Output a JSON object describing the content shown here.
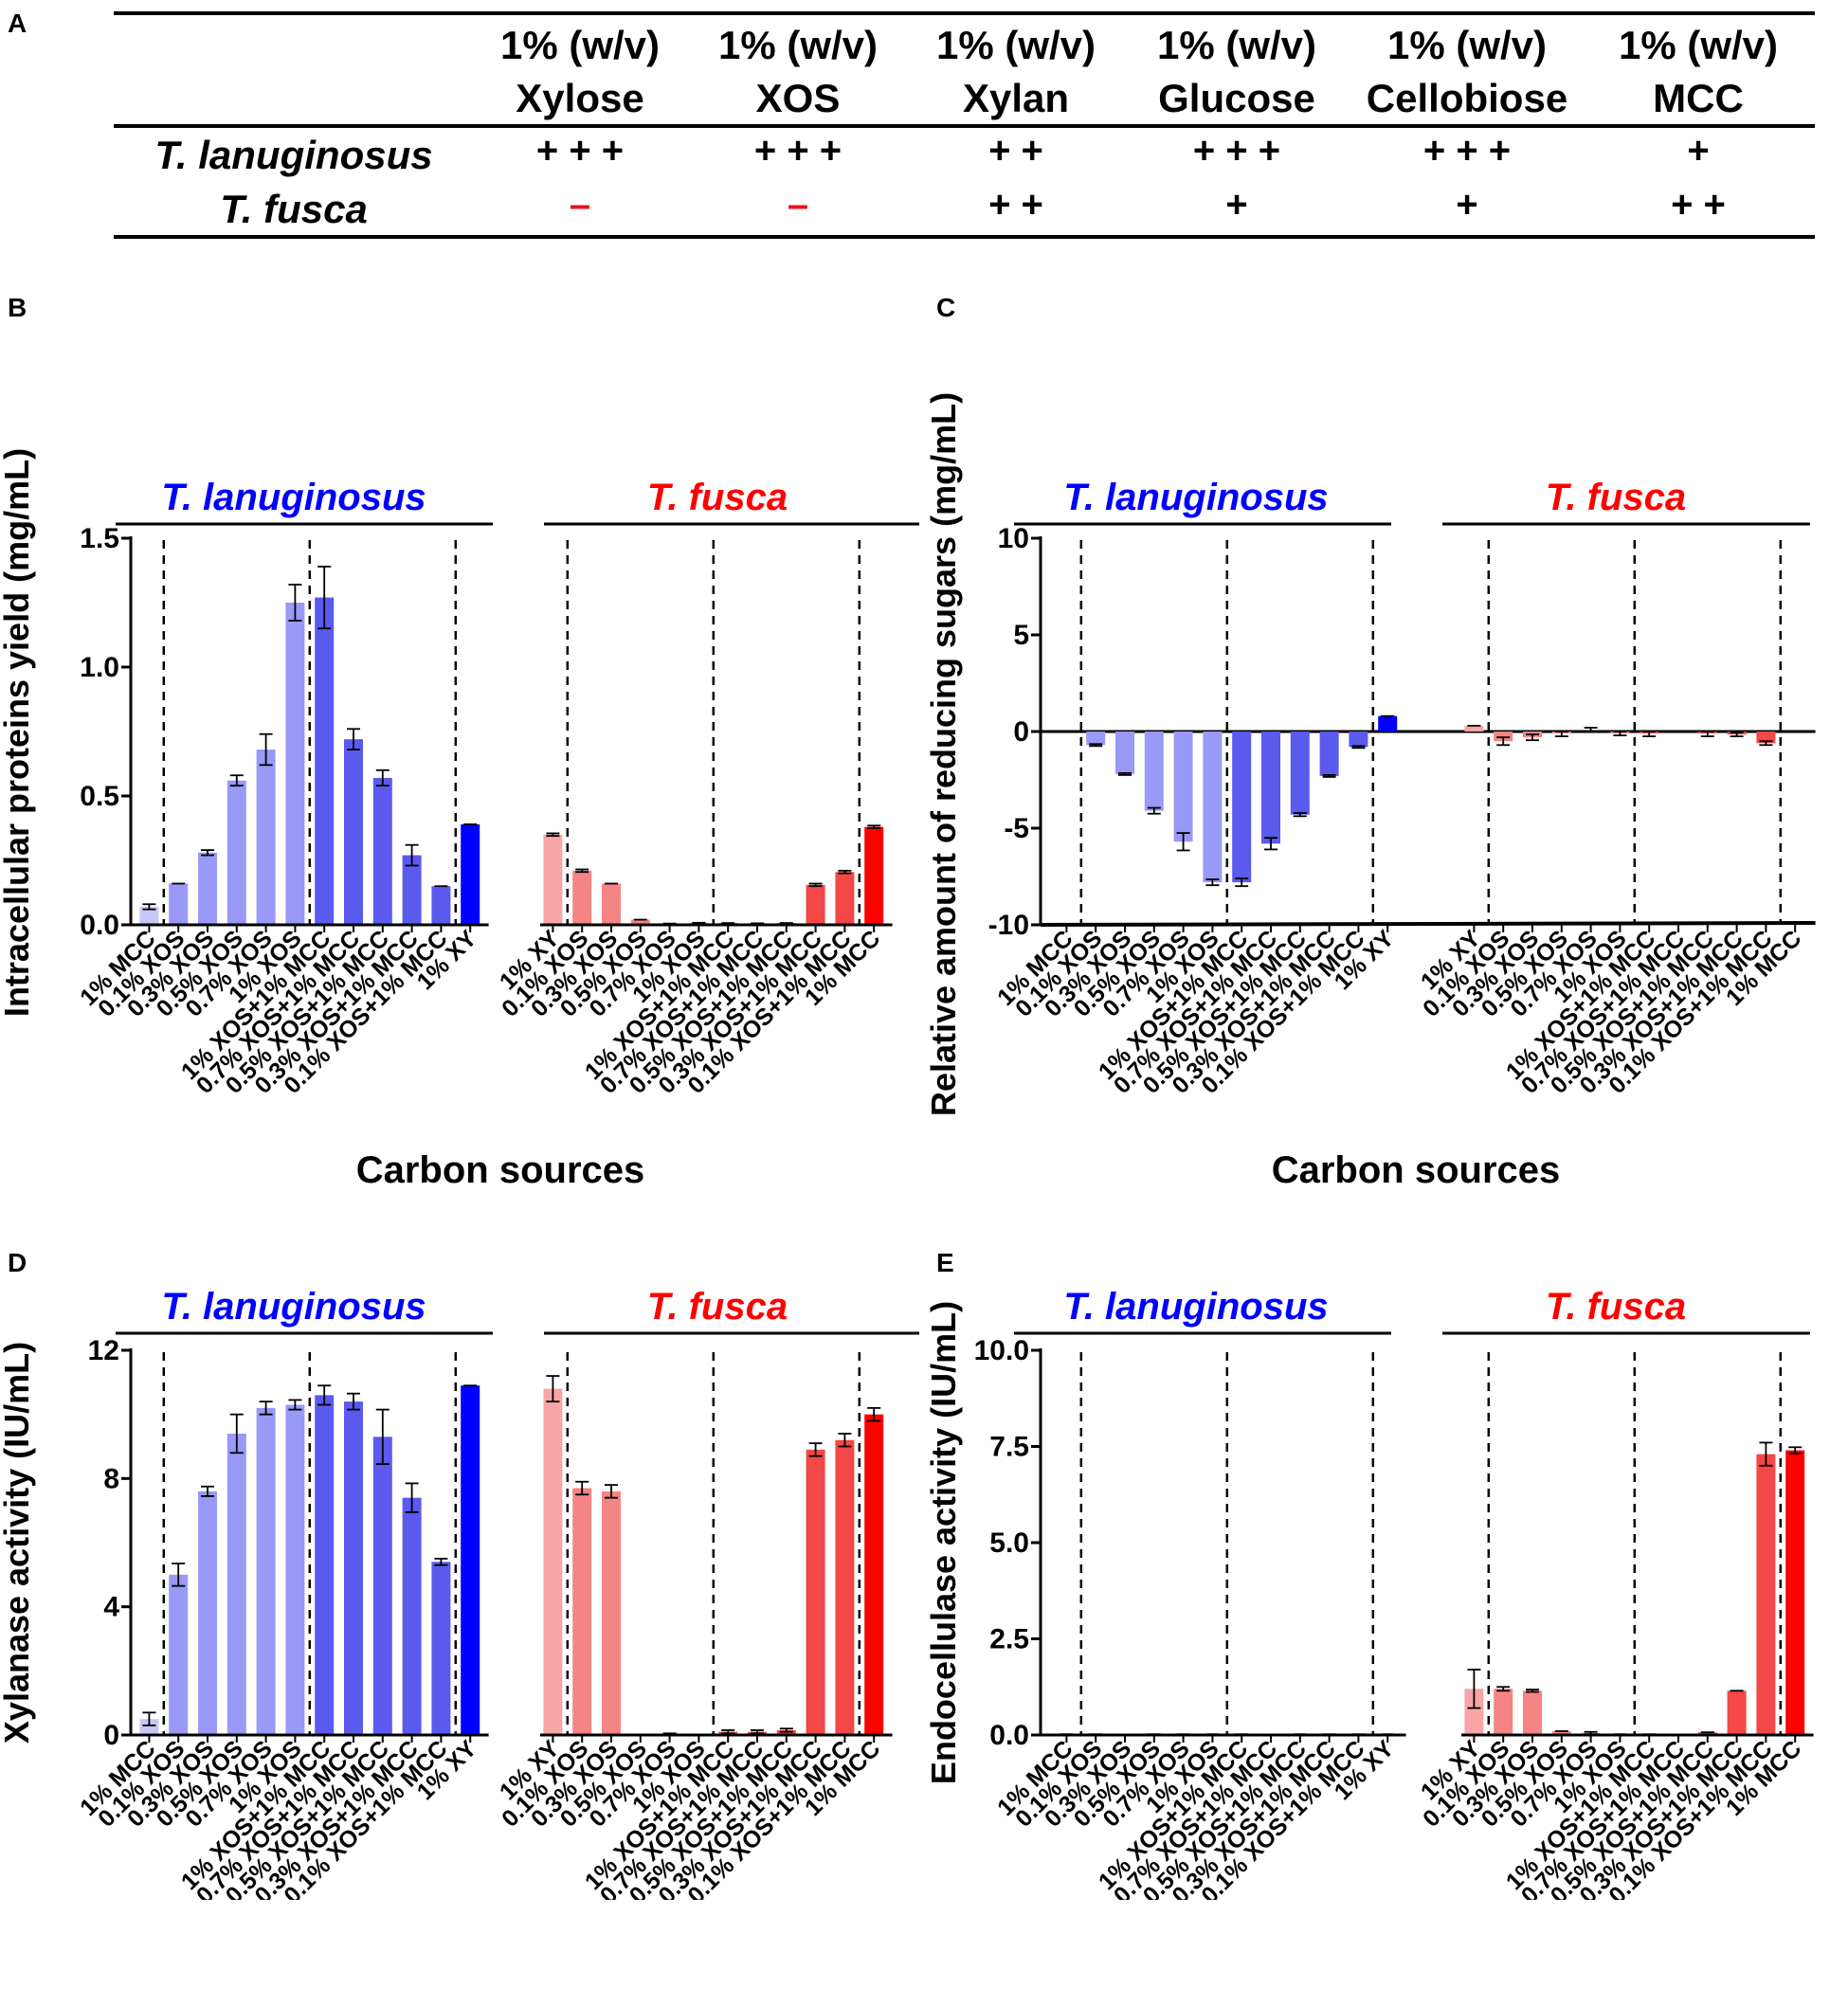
{
  "table": {
    "panel_letter": "A",
    "columns": [
      {
        "line1": "1% (w/v)",
        "line2": "Xylose"
      },
      {
        "line1": "1% (w/v)",
        "line2": "XOS"
      },
      {
        "line1": "1% (w/v)",
        "line2": "Xylan"
      },
      {
        "line1": "1% (w/v)",
        "line2": "Glucose"
      },
      {
        "line1": "1% (w/v)",
        "line2": "Cellobiose"
      },
      {
        "line1": "1% (w/v)",
        "line2": "MCC"
      }
    ],
    "rows": [
      {
        "organism": "T. lanuginosus",
        "cells": [
          "+ + +",
          "+ + +",
          "+ +",
          "+ + +",
          "+ + +",
          "+"
        ]
      },
      {
        "organism": "T. fusca",
        "cells": [
          "–",
          "–",
          "+ +",
          "+",
          "+",
          "+ +"
        ]
      }
    ]
  },
  "colors": {
    "tl": [
      "#c8c8f8",
      "#9999f7",
      "#5a5aef",
      "#0000ff"
    ],
    "tf": [
      "#f8a5a5",
      "#f58484",
      "#f44747",
      "#ff0000"
    ],
    "minus": "#e8141c",
    "tl_title": "#0000ff",
    "tf_title": "#ff0000"
  },
  "chart_data": [
    {
      "panel": "B",
      "type": "bar",
      "ylabel": "Intracellular proteins yield (mg/mL)",
      "xlabel": "Carbon sources",
      "ylim": [
        0,
        1.5
      ],
      "yticks": [
        "0.0",
        "0.5",
        "1.0",
        "1.5"
      ],
      "group_titles": [
        "T. lanuginosus",
        "T. fusca"
      ],
      "groups": [
        {
          "categories": [
            "1% MCC",
            "0.1% XOS",
            "0.3% XOS",
            "0.5% XOS",
            "0.7% XOS",
            "1% XOS",
            "1% XOS+1% MCC",
            "0.7% XOS+1% MCC",
            "0.5% XOS+1% MCC",
            "0.3% XOS+1% MCC",
            "0.1% XOS+1% MCC",
            "1% XY"
          ],
          "values": [
            0.07,
            0.16,
            0.28,
            0.56,
            0.68,
            1.25,
            1.27,
            0.72,
            0.57,
            0.27,
            0.15,
            0.39
          ],
          "errors": [
            0.01,
            0.0,
            0.01,
            0.02,
            0.06,
            0.07,
            0.12,
            0.04,
            0.03,
            0.04,
            0.0,
            0.0
          ]
        },
        {
          "categories": [
            "1% XY",
            "0.1% XOS",
            "0.3% XOS",
            "0.5% XOS",
            "0.7% XOS",
            "1% XOS",
            "1% XOS+1% MCC",
            "0.7% XOS+1% MCC",
            "0.5% XOS+1% MCC",
            "0.3% XOS+1% MCC",
            "0.1% XOS+1% MCC",
            "1% MCC"
          ],
          "values": [
            0.35,
            0.21,
            0.16,
            0.02,
            0.005,
            0.008,
            0.007,
            0.006,
            0.007,
            0.155,
            0.205,
            0.38
          ],
          "errors": [
            0.005,
            0.005,
            0.0,
            0.0,
            0.0,
            0.0,
            0.0,
            0.0,
            0.0,
            0.005,
            0.005,
            0.005
          ]
        }
      ]
    },
    {
      "panel": "C",
      "type": "bar",
      "ylabel": "Relative amount of reducing sugars (mg/mL)",
      "xlabel": "Carbon sources",
      "ylim": [
        -10,
        10
      ],
      "yticks": [
        "-10",
        "-5",
        "0",
        "5",
        "10"
      ],
      "group_titles": [
        "T. lanuginosus",
        "T. fusca"
      ],
      "groups": [
        {
          "categories": [
            "1% MCC",
            "0.1% XOS",
            "0.3% XOS",
            "0.5% XOS",
            "0.7% XOS",
            "1% XOS",
            "1% XOS+1% MCC",
            "0.7% XOS+1% MCC",
            "0.5% XOS+1% MCC",
            "0.3% XOS+1% MCC",
            "0.1% XOS+1% MCC",
            "1% XY"
          ],
          "values": [
            0.0,
            -0.7,
            -2.2,
            -4.1,
            -5.7,
            -7.8,
            -7.8,
            -5.8,
            -4.3,
            -2.3,
            -0.8,
            0.8
          ],
          "errors": [
            0.0,
            0.05,
            0.05,
            0.15,
            0.45,
            0.15,
            0.2,
            0.3,
            0.08,
            0.05,
            0.05,
            0.0
          ]
        },
        {
          "categories": [
            "1% XY",
            "0.1% XOS",
            "0.3% XOS",
            "0.5% XOS",
            "0.7% XOS",
            "1% XOS",
            "1% XOS+1% MCC",
            "0.7% XOS+1% MCC",
            "0.5% XOS+1% MCC",
            "0.3% XOS+1% MCC",
            "0.1% XOS+1% MCC",
            "1% MCC"
          ],
          "values": [
            0.3,
            -0.5,
            -0.3,
            -0.1,
            0.0,
            -0.1,
            -0.1,
            0.0,
            -0.1,
            -0.15,
            -0.6,
            0.0
          ],
          "errors": [
            0.0,
            0.2,
            0.15,
            0.15,
            0.2,
            0.1,
            0.15,
            0.0,
            0.15,
            0.1,
            0.1,
            0.0
          ]
        }
      ]
    },
    {
      "panel": "D",
      "type": "bar",
      "ylabel": "Xylanase activity (IU/mL)",
      "xlabel": "",
      "ylim": [
        0,
        12
      ],
      "yticks": [
        "0",
        "4",
        "8",
        "12"
      ],
      "group_titles": [
        "T. lanuginosus",
        "T. fusca"
      ],
      "groups": [
        {
          "categories": [
            "1% MCC",
            "0.1% XOS",
            "0.3% XOS",
            "0.5% XOS",
            "0.7% XOS",
            "1% XOS",
            "1% XOS+1% MCC",
            "0.7% XOS+1% MCC",
            "0.5% XOS+1% MCC",
            "0.3% XOS+1% MCC",
            "0.1% XOS+1% MCC",
            "1% XY"
          ],
          "values": [
            0.5,
            5.0,
            7.6,
            9.4,
            10.2,
            10.3,
            10.6,
            10.4,
            9.3,
            7.4,
            5.4,
            10.9
          ],
          "errors": [
            0.2,
            0.35,
            0.15,
            0.6,
            0.2,
            0.15,
            0.3,
            0.25,
            0.85,
            0.45,
            0.1,
            0.0
          ]
        },
        {
          "categories": [
            "1% XY",
            "0.1% XOS",
            "0.3% XOS",
            "0.5% XOS",
            "0.7% XOS",
            "1% XOS",
            "1% XOS+1% MCC",
            "0.7% XOS+1% MCC",
            "0.5% XOS+1% MCC",
            "0.3% XOS+1% MCC",
            "0.1% XOS+1% MCC",
            "1% MCC"
          ],
          "values": [
            10.8,
            7.7,
            7.6,
            0.0,
            0.05,
            0.0,
            0.1,
            0.1,
            0.15,
            8.9,
            9.2,
            10.0
          ],
          "errors": [
            0.4,
            0.2,
            0.2,
            0.0,
            0.0,
            0.0,
            0.05,
            0.05,
            0.05,
            0.2,
            0.2,
            0.2
          ]
        }
      ]
    },
    {
      "panel": "E",
      "type": "bar",
      "ylabel": "Endocellulase activity (IU/mL)",
      "xlabel": "",
      "ylim": [
        0,
        10
      ],
      "yticks": [
        "0.0",
        "2.5",
        "5.0",
        "7.5",
        "10.0"
      ],
      "group_titles": [
        "T. lanuginosus",
        "T. fusca"
      ],
      "groups": [
        {
          "categories": [
            "1% MCC",
            "0.1% XOS",
            "0.3% XOS",
            "0.5% XOS",
            "0.7% XOS",
            "1% XOS",
            "1% XOS+1% MCC",
            "0.7% XOS+1% MCC",
            "0.5% XOS+1% MCC",
            "0.3% XOS+1% MCC",
            "0.1% XOS+1% MCC",
            "1% XY"
          ],
          "values": [
            0.02,
            0.02,
            0.01,
            0.02,
            0.02,
            0.02,
            0.02,
            0.01,
            0.02,
            0.02,
            0.02,
            0.02
          ],
          "errors": [
            0,
            0,
            0,
            0,
            0,
            0,
            0,
            0,
            0,
            0,
            0,
            0
          ]
        },
        {
          "categories": [
            "1% XY",
            "0.1% XOS",
            "0.3% XOS",
            "0.5% XOS",
            "0.7% XOS",
            "1% XOS",
            "1% XOS+1% MCC",
            "0.7% XOS+1% MCC",
            "0.5% XOS+1% MCC",
            "0.3% XOS+1% MCC",
            "0.1% XOS+1% MCC",
            "1% MCC"
          ],
          "values": [
            1.2,
            1.2,
            1.15,
            0.1,
            0.05,
            0.02,
            0.02,
            0.01,
            0.07,
            1.15,
            7.3,
            7.4
          ],
          "errors": [
            0.5,
            0.05,
            0.03,
            0.0,
            0.03,
            0.0,
            0.0,
            0.0,
            0.0,
            0.0,
            0.3,
            0.08
          ]
        }
      ]
    }
  ]
}
